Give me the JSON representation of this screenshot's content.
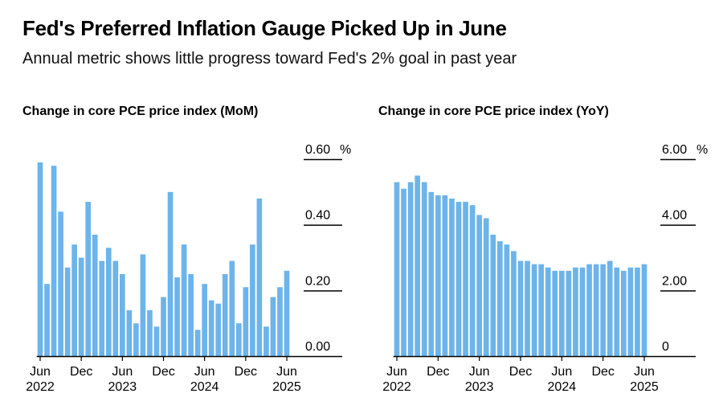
{
  "header": {
    "title": "Fed's Preferred Inflation Gauge Picked Up in June",
    "subtitle": "Annual metric shows little progress toward Fed's 2% goal in past year"
  },
  "colors": {
    "bar": "#6cb4ea",
    "axis": "#000000"
  },
  "chart_data": [
    {
      "type": "bar",
      "title": "Change in core PCE price index (MoM)",
      "unit": "%",
      "ylim": [
        0,
        0.6
      ],
      "yticks": [
        "0.00",
        "0.20",
        "0.40",
        "0.60"
      ],
      "ytick_values": [
        0,
        0.2,
        0.4,
        0.6
      ],
      "top_tick_unit": "%",
      "xticks": [
        {
          "label": "Jun",
          "year": "2022",
          "index": 0
        },
        {
          "label": "Dec",
          "year": "",
          "index": 6
        },
        {
          "label": "Jun",
          "year": "2023",
          "index": 12
        },
        {
          "label": "Dec",
          "year": "",
          "index": 18
        },
        {
          "label": "Jun",
          "year": "2024",
          "index": 24
        },
        {
          "label": "Dec",
          "year": "",
          "index": 30
        },
        {
          "label": "Jun",
          "year": "2025",
          "index": 36
        }
      ],
      "values": [
        0.59,
        0.22,
        0.58,
        0.44,
        0.27,
        0.34,
        0.3,
        0.47,
        0.37,
        0.29,
        0.33,
        0.29,
        0.25,
        0.14,
        0.1,
        0.31,
        0.14,
        0.09,
        0.18,
        0.5,
        0.24,
        0.34,
        0.25,
        0.08,
        0.22,
        0.17,
        0.16,
        0.25,
        0.29,
        0.1,
        0.21,
        0.34,
        0.48,
        0.09,
        0.18,
        0.21,
        0.26
      ]
    },
    {
      "type": "bar",
      "title": "Change in core PCE price index (YoY)",
      "unit": "%",
      "ylim": [
        0,
        6
      ],
      "yticks": [
        "0",
        "2.00",
        "4.00",
        "6.00"
      ],
      "ytick_values": [
        0,
        2,
        4,
        6
      ],
      "top_tick_unit": "%",
      "xticks": [
        {
          "label": "Jun",
          "year": "2022",
          "index": 0
        },
        {
          "label": "Dec",
          "year": "",
          "index": 6
        },
        {
          "label": "Jun",
          "year": "2023",
          "index": 12
        },
        {
          "label": "Dec",
          "year": "",
          "index": 18
        },
        {
          "label": "Jun",
          "year": "2024",
          "index": 24
        },
        {
          "label": "Dec",
          "year": "",
          "index": 30
        },
        {
          "label": "Jun",
          "year": "2025",
          "index": 36
        }
      ],
      "values": [
        5.3,
        5.1,
        5.3,
        5.5,
        5.3,
        5.0,
        4.9,
        4.9,
        4.8,
        4.7,
        4.7,
        4.6,
        4.3,
        4.2,
        3.7,
        3.5,
        3.4,
        3.2,
        2.9,
        2.9,
        2.8,
        2.8,
        2.7,
        2.6,
        2.6,
        2.6,
        2.7,
        2.7,
        2.8,
        2.8,
        2.8,
        2.9,
        2.7,
        2.6,
        2.7,
        2.7,
        2.8
      ]
    }
  ]
}
